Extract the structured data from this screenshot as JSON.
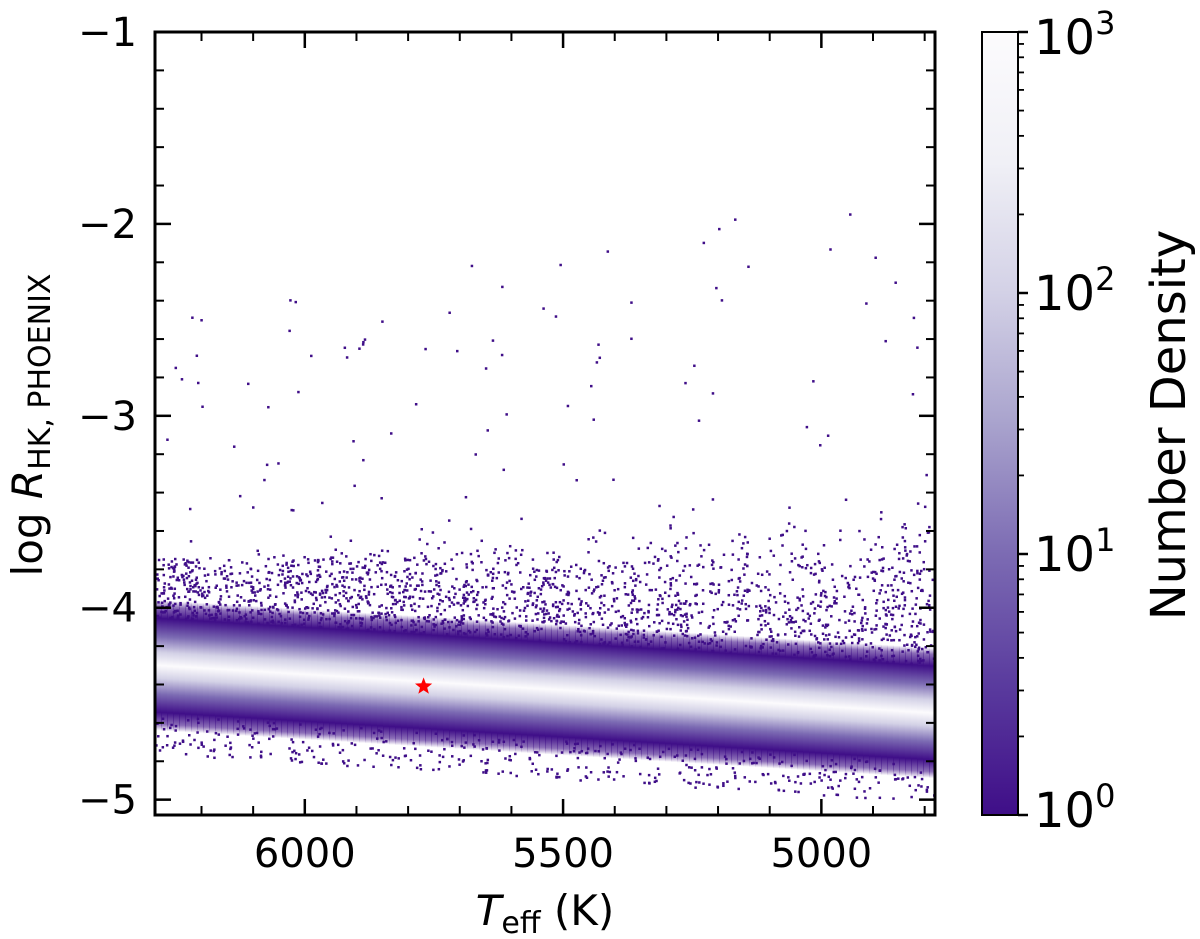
{
  "chart_data": {
    "type": "heatmap",
    "xlabel": {
      "main": "T",
      "sub": "eff",
      "unit": " (K)"
    },
    "ylabel": {
      "prefix": "log ",
      "main": "R",
      "sub": "HK, PHOENIX"
    },
    "xlim": [
      6290,
      4780
    ],
    "ylim": [
      -5.08,
      -1.0
    ],
    "x_inverted": true,
    "x_ticks": [
      6000,
      5500,
      5000
    ],
    "x_tick_labels": [
      "6000",
      "5500",
      "5000"
    ],
    "y_ticks": [
      -1,
      -2,
      -3,
      -4,
      -5
    ],
    "y_tick_labels": [
      "−1",
      "−2",
      "−3",
      "−4",
      "−5"
    ],
    "density_ridge": [
      {
        "teff": 6290,
        "log_rhk": -4.3
      },
      {
        "teff": 5500,
        "log_rhk": -4.43
      },
      {
        "teff": 4780,
        "log_rhk": -4.55
      }
    ],
    "marker": {
      "teff": 5770,
      "log_rhk": -4.41,
      "symbol": "star",
      "color": "#ff0000"
    },
    "colorbar": {
      "label": "Number Density",
      "scale": "log",
      "range": [
        1,
        1000
      ],
      "ticks": [
        {
          "value": 1,
          "base": "10",
          "exp": "0"
        },
        {
          "value": 10,
          "base": "10",
          "exp": "1"
        },
        {
          "value": 100,
          "base": "10",
          "exp": "2"
        },
        {
          "value": 1000,
          "base": "10",
          "exp": "3"
        }
      ],
      "colormap": [
        "#3f0e88",
        "#5a3b9e",
        "#7c6bb3",
        "#a9a3cd",
        "#d3d1e6",
        "#f0f0f6",
        "#fcfbfd"
      ]
    }
  }
}
